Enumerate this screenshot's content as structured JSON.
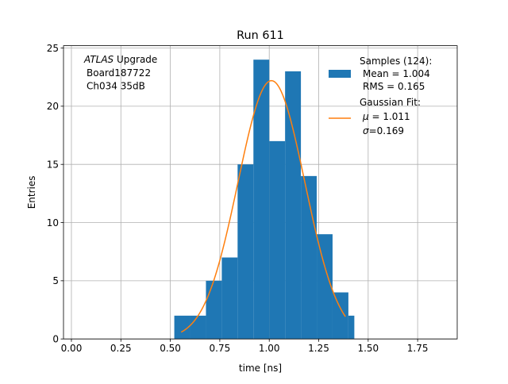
{
  "chart_data": {
    "type": "bar",
    "title": "Run 611",
    "xlabel": "time [ns]",
    "ylabel": "Entries",
    "xlim": [
      -0.04,
      1.95
    ],
    "ylim": [
      0,
      25.2
    ],
    "xticks": [
      0.0,
      0.25,
      0.5,
      0.75,
      1.0,
      1.25,
      1.5,
      1.75
    ],
    "xtick_labels": [
      "0.00",
      "0.25",
      "0.50",
      "0.75",
      "1.00",
      "1.25",
      "1.50",
      "1.75"
    ],
    "yticks": [
      0,
      5,
      10,
      15,
      20,
      25
    ],
    "ytick_labels": [
      "0",
      "5",
      "10",
      "15",
      "20",
      "25"
    ],
    "grid": true,
    "legend_position": "top-right",
    "annotation": {
      "italic": "ATLAS",
      "line1_rest": " Upgrade",
      "line2": "Board187722",
      "line3": "Ch034 35dB"
    },
    "histogram": {
      "name": "Samples (124):",
      "stats": [
        "Mean = 1.004",
        "RMS = 0.165"
      ],
      "color": "#1f77b4",
      "bin_edges": [
        0.52,
        0.6,
        0.68,
        0.76,
        0.84,
        0.92,
        1.0,
        1.08,
        1.16,
        1.24,
        1.32,
        1.4,
        1.43
      ],
      "counts": [
        2,
        2,
        5,
        7,
        15,
        24,
        17,
        23,
        14,
        9,
        4,
        2
      ]
    },
    "fit": {
      "name": "Gaussian Fit:",
      "mu_symbol": "μ",
      "mu_text": " = 1.011",
      "sigma_symbol": "σ",
      "sigma_text": "=0.169",
      "color": "#ff7f0e",
      "amplitude": 22.2,
      "mu": 1.011,
      "sigma": 0.169,
      "x_range": [
        0.555,
        1.385
      ]
    }
  }
}
